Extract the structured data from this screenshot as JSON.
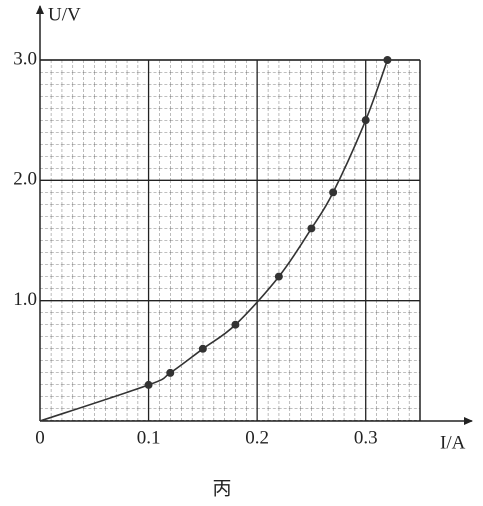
{
  "chart_data": {
    "type": "line",
    "x_label": "I/A",
    "y_label": "U/V",
    "caption": "丙",
    "xlim": [
      0,
      0.35
    ],
    "ylim": [
      0,
      3
    ],
    "xticks": [
      0,
      0.1,
      0.2,
      0.3
    ],
    "yticks": [
      {
        "value": 1,
        "label": "1.0"
      },
      {
        "value": 2,
        "label": "2.0"
      },
      {
        "value": 3,
        "label": "3.0"
      }
    ],
    "grid": true,
    "color": "#333",
    "series": [
      {
        "marker": true,
        "x": [
          0.1,
          0.12,
          0.15,
          0.18,
          0.22,
          0.25,
          0.27,
          0.3,
          0.32
        ],
        "values": [
          0.3,
          0.4,
          0.6,
          0.8,
          1.2,
          1.6,
          1.9,
          2.5,
          3.0
        ]
      },
      {
        "smooth": true,
        "x": [
          0,
          0.1,
          0.12,
          0.15,
          0.18,
          0.22,
          0.25,
          0.27,
          0.3,
          0.32
        ],
        "values": [
          0,
          0.3,
          0.4,
          0.6,
          0.8,
          1.2,
          1.6,
          1.9,
          2.5,
          3.0
        ]
      }
    ]
  }
}
